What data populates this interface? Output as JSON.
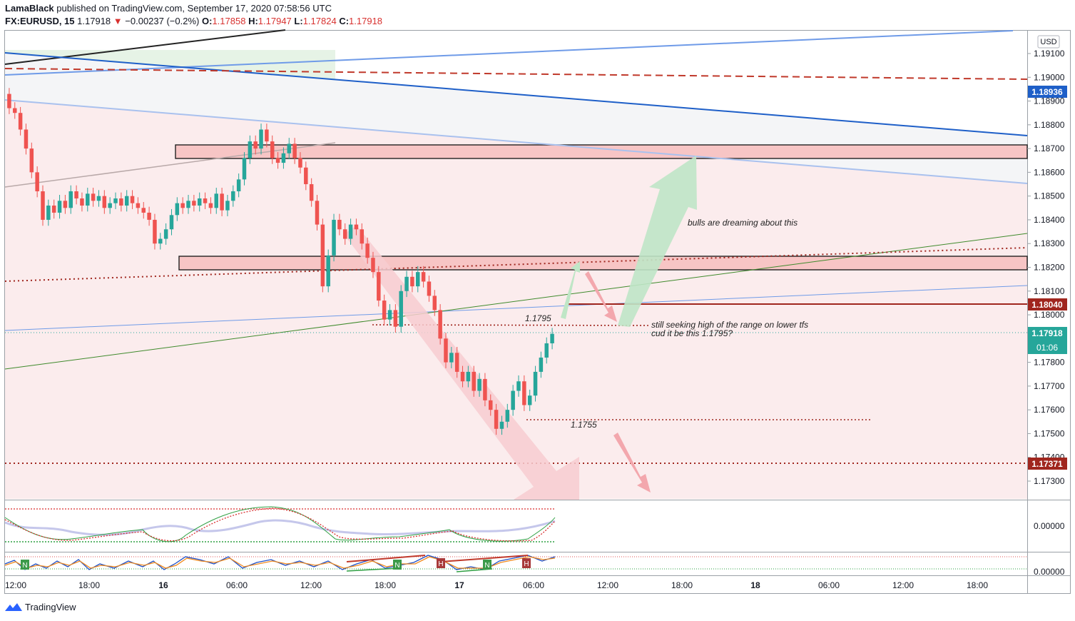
{
  "header": {
    "author": "LamaBlack",
    "published_text": "published on TradingView.com, September 17, 2020 07:58:56 UTC",
    "symbol": "FX:EURUSD, 15",
    "last": "1.17918",
    "change_arrow": "▼",
    "change": "−0.00237 (−0.2%)",
    "open_label": "O:",
    "open": "1.17858",
    "high_label": "H:",
    "high": "1.17947",
    "low_label": "L:",
    "low": "1.17824",
    "close_label": "C:",
    "close": "1.17918"
  },
  "currency_button": "USD",
  "footer": {
    "brand": "TradingView",
    "logo_icon": "tradingview-logo-icon"
  },
  "colors": {
    "up": "#26a69a",
    "down": "#ef5350",
    "zone_fill": "#f7c5c5",
    "blue_line": "#1e5fc8",
    "light_blue_line": "#6f9be8",
    "dotted_red": "#a0261e",
    "green_line": "#3f8a2c",
    "bull_arrow": "#a9dfb4",
    "bear_arrow": "#f3a7ad"
  },
  "chart_data": {
    "type": "candlestick",
    "y_axis_ticks": [
      "1.19100",
      "1.19000",
      "1.18900",
      "1.18800",
      "1.18700",
      "1.18600",
      "1.18500",
      "1.18400",
      "1.18300",
      "1.18200",
      "1.18100",
      "1.18000",
      "1.17900",
      "1.17800",
      "1.17700",
      "1.17600",
      "1.17500",
      "1.17400",
      "1.17300"
    ],
    "y_range": [
      1.1719,
      1.1917
    ],
    "x_axis_labels": [
      "12:00",
      "18:00",
      "16",
      "06:00",
      "12:00",
      "18:00",
      "17",
      "06:00",
      "12:00",
      "18:00",
      "18",
      "06:00",
      "12:00",
      "18:00"
    ],
    "price_labels": [
      {
        "value": "1.18936",
        "color": "#1e5fc8"
      },
      {
        "value": "1.18040",
        "color": "#a0261e"
      },
      {
        "value": "1.17918",
        "color": "#26a69a"
      },
      {
        "value": "01:06",
        "color": "#26a69a"
      },
      {
        "value": "1.17371",
        "color": "#a0261e"
      }
    ],
    "candles_close": [
      1.1887,
      1.1885,
      1.1878,
      1.187,
      1.186,
      1.1852,
      1.184,
      1.1846,
      1.1843,
      1.1848,
      1.1845,
      1.1852,
      1.1849,
      1.1846,
      1.1851,
      1.1848,
      1.185,
      1.1845,
      1.1847,
      1.1849,
      1.1846,
      1.185,
      1.1847,
      1.1845,
      1.1843,
      1.184,
      1.183,
      1.1832,
      1.1836,
      1.1842,
      1.1847,
      1.1845,
      1.1848,
      1.1846,
      1.1849,
      1.1847,
      1.1845,
      1.1851,
      1.1844,
      1.1848,
      1.1852,
      1.1857,
      1.1866,
      1.1873,
      1.187,
      1.1878,
      1.1873,
      1.1866,
      1.1864,
      1.1868,
      1.1872,
      1.1866,
      1.1862,
      1.1855,
      1.1848,
      1.1838,
      1.1812,
      1.1825,
      1.184,
      1.1836,
      1.1832,
      1.1838,
      1.1836,
      1.183,
      1.1824,
      1.1818,
      1.1806,
      1.1798,
      1.1802,
      1.1795,
      1.181,
      1.1816,
      1.1812,
      1.1818,
      1.1814,
      1.1808,
      1.1802,
      1.179,
      1.178,
      1.1784,
      1.1776,
      1.1772,
      1.1776,
      1.1768,
      1.1773,
      1.1764,
      1.176,
      1.1752,
      1.1755,
      1.176,
      1.1768,
      1.1772,
      1.1762,
      1.1766,
      1.1776,
      1.1782,
      1.1788,
      1.1792
    ],
    "levels": [
      {
        "label": "1.1795",
        "value": 1.1795
      },
      {
        "label": "1.1755",
        "value": 1.1755
      }
    ],
    "zones": [
      {
        "from": 1.1866,
        "to": 1.1871
      },
      {
        "from": 1.1818,
        "to": 1.1824
      }
    ],
    "annotations": [
      "bulls are dreaming about this",
      "still seeking high of the range on lower tfs",
      "cud it be this 1.1795?"
    ],
    "oscillator1_ticks": [
      "0.00000"
    ],
    "oscillator2_ticks": [
      "0.00000"
    ],
    "osc_markers": [
      "N",
      "N",
      "H",
      "N",
      "H"
    ]
  }
}
